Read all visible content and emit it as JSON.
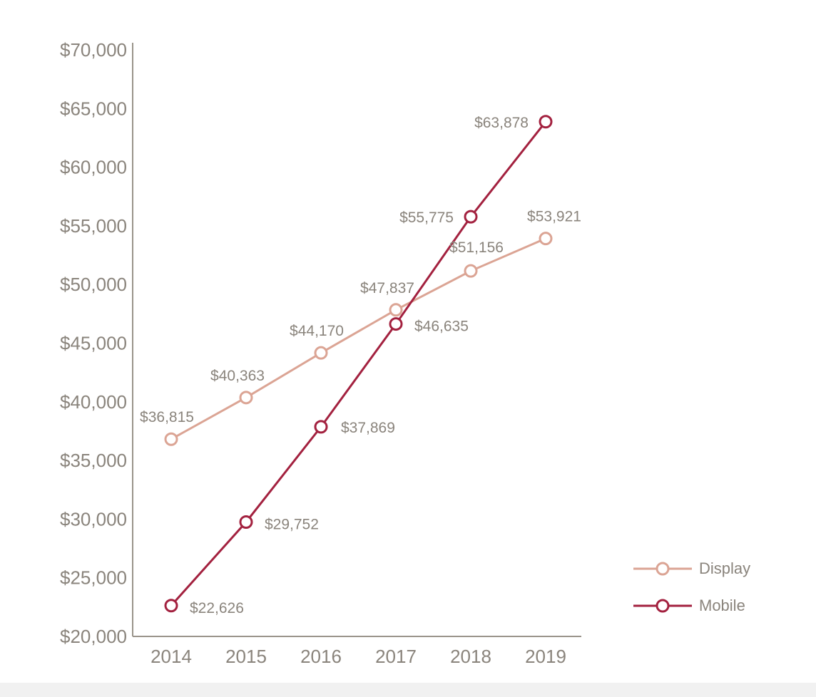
{
  "chart_data": {
    "type": "line",
    "title": "",
    "xlabel": "",
    "ylabel": "",
    "categories": [
      "2014",
      "2015",
      "2016",
      "2017",
      "2018",
      "2019"
    ],
    "ylim": [
      20000,
      70000
    ],
    "yticks": [
      20000,
      25000,
      30000,
      35000,
      40000,
      45000,
      50000,
      55000,
      60000,
      65000,
      70000
    ],
    "ytick_labels": [
      "$20,000",
      "$25,000",
      "$30,000",
      "$35,000",
      "$40,000",
      "$45,000",
      "$50,000",
      "$55,000",
      "$60,000",
      "$65,000",
      "$70,000"
    ],
    "grid": false,
    "legend_position": "bottom-right",
    "series": [
      {
        "name": "Display",
        "color": "#dba494",
        "values": [
          36815,
          40363,
          44170,
          47837,
          51156,
          53921
        ],
        "labels": [
          "$36,815",
          "$40,363",
          "$44,170",
          "$47,837",
          "$51,156",
          "$53,921"
        ]
      },
      {
        "name": "Mobile",
        "color": "#a3213f",
        "values": [
          22626,
          29752,
          37869,
          46635,
          55775,
          63878
        ],
        "labels": [
          "$22,626",
          "$29,752",
          "$37,869",
          "$46,635",
          "$55,775",
          "$63,878"
        ]
      }
    ]
  }
}
